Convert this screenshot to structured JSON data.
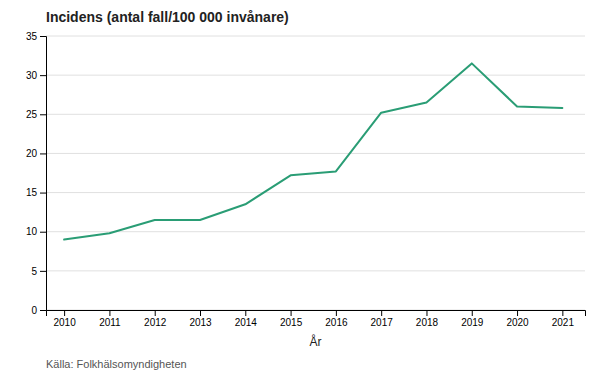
{
  "chart_data": {
    "type": "line",
    "title": "Incidens (antal fall/100 000 invånare)",
    "x_label": "År",
    "x": [
      2010,
      2011,
      2012,
      2013,
      2014,
      2015,
      2016,
      2017,
      2018,
      2019,
      2020,
      2021
    ],
    "values": [
      9.0,
      9.8,
      11.5,
      11.5,
      13.5,
      17.2,
      17.7,
      25.2,
      26.5,
      31.5,
      26.0,
      25.8
    ],
    "color": "#2a9d75",
    "xlim": [
      2009.6,
      2021.5
    ],
    "xticks": [
      2010,
      2011,
      2012,
      2013,
      2014,
      2015,
      2016,
      2017,
      2018,
      2019,
      2020,
      2021
    ],
    "ylim": [
      0,
      35
    ],
    "yticks": [
      0,
      5,
      10,
      15,
      20,
      25,
      30,
      35
    ],
    "grid": true,
    "annotations": [
      "Källa: Folkhälsomyndigheten"
    ]
  }
}
